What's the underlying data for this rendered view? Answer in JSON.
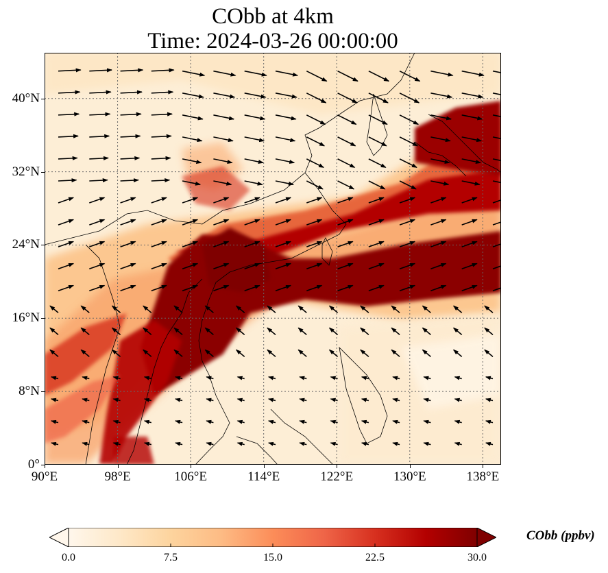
{
  "title": {
    "line1": "CObb at 4km",
    "line2": "Time: 2024-03-26 00:00:00"
  },
  "map": {
    "variable": "CObb",
    "extent": {
      "lon_min": 90,
      "lon_max": 140,
      "lat_min": 0,
      "lat_max": 45
    },
    "lat_ticks": [
      {
        "value": 40,
        "label": "40°N"
      },
      {
        "value": 32,
        "label": "32°N"
      },
      {
        "value": 24,
        "label": "24°N"
      },
      {
        "value": 16,
        "label": "16°N"
      },
      {
        "value": 8,
        "label": "8°N"
      },
      {
        "value": 0,
        "label": "0°"
      }
    ],
    "lon_ticks": [
      {
        "value": 90,
        "label": "90°E"
      },
      {
        "value": 98,
        "label": "98°E"
      },
      {
        "value": 106,
        "label": "106°E"
      },
      {
        "value": 114,
        "label": "114°E"
      },
      {
        "value": 122,
        "label": "122°E"
      },
      {
        "value": 130,
        "label": "130°E"
      },
      {
        "value": 138,
        "label": "138°E"
      }
    ],
    "gridlines": "dotted",
    "wind_vectors": "shown"
  },
  "colorbar": {
    "label": "CObb (ppbv)",
    "min": 0,
    "max": 30,
    "extend": "both",
    "ticks": [
      "0.0",
      "7.5",
      "15.0",
      "22.5",
      "30.0"
    ],
    "tick_values": [
      0,
      7.5,
      15,
      22.5,
      30
    ],
    "colormap": "OrRd",
    "colors": [
      "#fff7ec",
      "#fee8c8",
      "#fdd49e",
      "#fdbb84",
      "#fc8d59",
      "#ef6548",
      "#d7301f",
      "#b30000",
      "#7f0000"
    ]
  }
}
